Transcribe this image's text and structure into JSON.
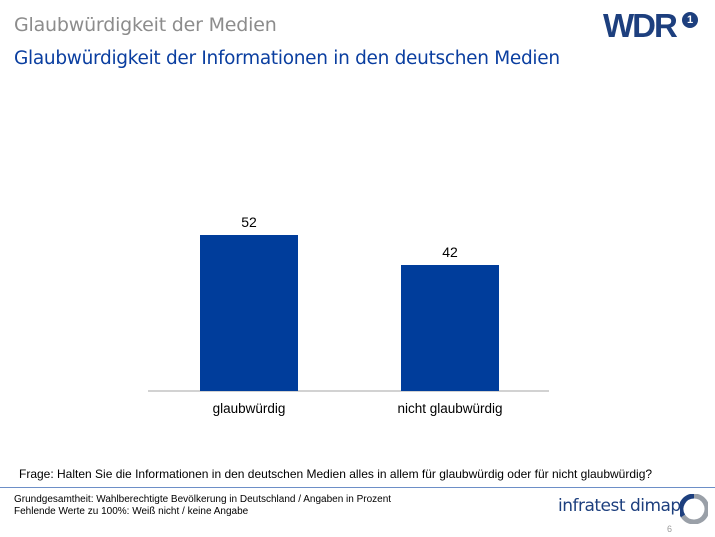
{
  "header": {
    "title": "Glaubwürdigkeit der Medien",
    "subtitle": "Glaubwürdigkeit der Informationen in den deutschen Medien"
  },
  "logos": {
    "broadcaster": "WDR",
    "institute": "infratest dimap"
  },
  "chart_data": {
    "type": "bar",
    "categories": [
      "glaubwürdig",
      "nicht glaubwürdig"
    ],
    "values": [
      52,
      42
    ],
    "ylim": [
      0,
      100
    ],
    "grid": false,
    "legend": "none",
    "bar_color": "#003d9b"
  },
  "question": "Frage: Halten Sie die Informationen  in den deutschen Medien alles in allem für glaubwürdig  oder für nicht glaubwürdig?",
  "footnotes": [
    "Grundgesamtheit:  Wahlberechtigte Bevölkerung  in Deutschland / Angaben in Prozent",
    "Fehlende  Werte zu 100%: Weiß nicht / keine Angabe"
  ],
  "page_number": "6",
  "colors": {
    "title_gray": "#8c8c8c",
    "subtitle_blue": "#0a3ea0",
    "logo_blue": "#1d3f7e"
  }
}
